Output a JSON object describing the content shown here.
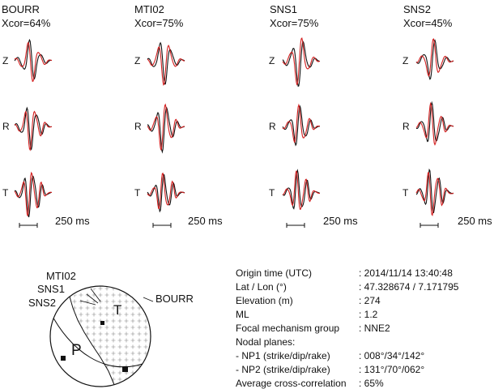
{
  "stations": [
    {
      "name": "BOURR",
      "xcor": "Xcor=64%"
    },
    {
      "name": "MTI02",
      "xcor": "Xcor=75%"
    },
    {
      "name": "SNS1",
      "xcor": "Xcor=75%"
    },
    {
      "name": "SNS2",
      "xcor": "Xcor=45%"
    }
  ],
  "components": [
    "Z",
    "R",
    "T"
  ],
  "scale_label": "250 ms",
  "colors": {
    "observed": "#111111",
    "synthetic": "#d42020"
  },
  "beachball": {
    "stations": [
      "MTI02",
      "SNS1",
      "SNS2",
      "BOURR"
    ],
    "axes": [
      "P",
      "T"
    ]
  },
  "info": [
    {
      "label": "Origin time (UTC)",
      "value": ": 2014/11/14 13:40:48"
    },
    {
      "label": "Lat / Lon (°)",
      "value": ": 47.328674 / 7.171795"
    },
    {
      "label": "Elevation (m)",
      "value": ": 274"
    },
    {
      "label": "ML",
      "value": ": 1.2"
    },
    {
      "label": "Focal mechanism group",
      "value": ": NNE2"
    },
    {
      "label": "Nodal planes:",
      "value": ""
    },
    {
      "label": "- NP1 (strike/dip/rake)",
      "value": ": 008°/34°/142°"
    },
    {
      "label": "- NP2 (strike/dip/rake)",
      "value": ": 131°/70°/062°"
    },
    {
      "label": "Average cross-correlation",
      "value": ": 65%"
    }
  ]
}
